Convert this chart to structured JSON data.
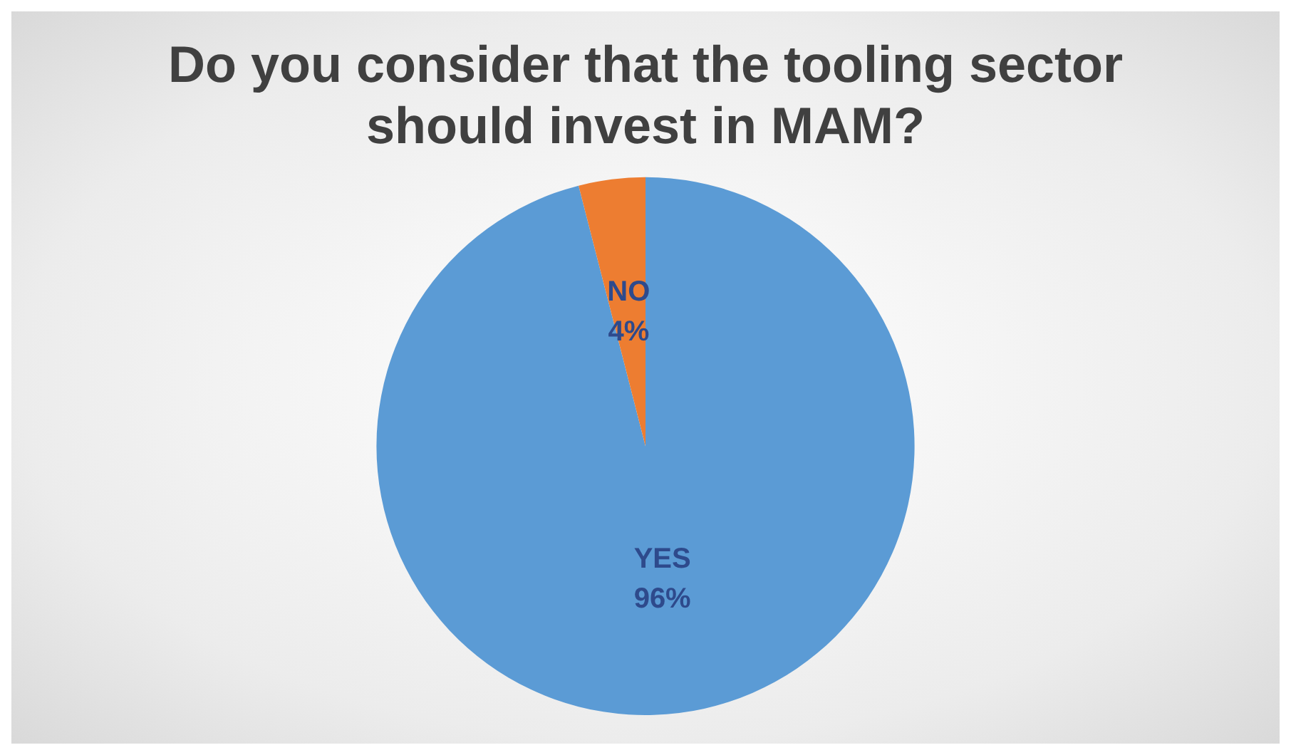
{
  "chart_data": {
    "type": "pie",
    "title": "Do you consider that the tooling sector should invest in MAM?",
    "categories": [
      "YES",
      "NO"
    ],
    "values": [
      96,
      4
    ],
    "value_labels": [
      "96%",
      "4%"
    ],
    "colors": [
      "#5b9bd5",
      "#ed7d31"
    ],
    "legend": false
  }
}
